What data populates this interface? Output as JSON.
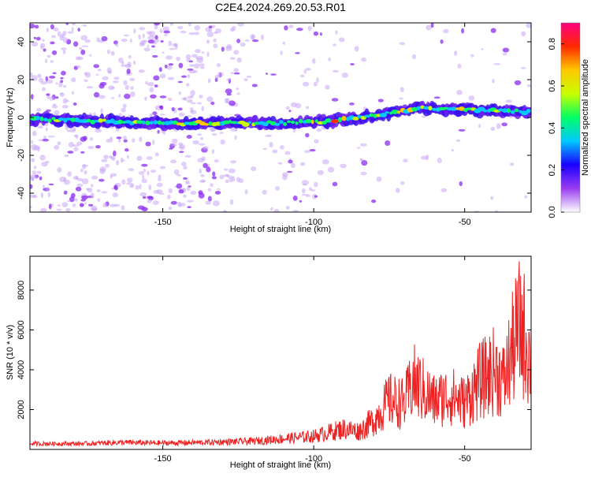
{
  "title": "C2E4.2024.269.20.53.R01",
  "spectrogram": {
    "xlabel": "Height of straight line (km)",
    "ylabel": "Frequency (Hz)",
    "xticks": [
      "-150",
      "-100",
      "-50"
    ],
    "yticks": [
      "40",
      "20",
      "0",
      "-20",
      "-40"
    ],
    "colorbar": {
      "label": "Normalized spectral amplitude",
      "ticks": [
        "0.8",
        "0.6",
        "0.4",
        "0.2",
        "0.0"
      ],
      "colors": [
        "#ffffff",
        "#9a3cf0",
        "#1a00ff",
        "#00c8ff",
        "#00ff66",
        "#c8ff00",
        "#ffc800",
        "#ff2a00",
        "#ff0080"
      ]
    }
  },
  "chart_data": [
    {
      "type": "heatmap",
      "xlabel": "Height of straight line (km)",
      "ylabel": "Frequency (Hz)",
      "xlim": [
        -194,
        -28
      ],
      "ylim": [
        -50,
        50
      ],
      "colorbar_range": [
        0,
        0.9
      ],
      "dominant_ridge": [
        {
          "x": -190,
          "y": -1
        },
        {
          "x": -170,
          "y": -2
        },
        {
          "x": -150,
          "y": -3
        },
        {
          "x": -130,
          "y": -3
        },
        {
          "x": -110,
          "y": -3
        },
        {
          "x": -95,
          "y": -2
        },
        {
          "x": -80,
          "y": 1
        },
        {
          "x": -65,
          "y": 5
        },
        {
          "x": -50,
          "y": 4
        },
        {
          "x": -30,
          "y": 3
        }
      ]
    },
    {
      "type": "line",
      "xlabel": "Height of straight line (km)",
      "ylabel": "SNR (10 * v/v)",
      "xlim": [
        -194,
        -28
      ],
      "ylim": [
        0,
        9700
      ],
      "yticks": [
        "8000",
        "6000",
        "4000",
        "2000"
      ],
      "xticks": [
        "-150",
        "-100",
        "-50"
      ],
      "series": [
        {
          "color": "#ee2222",
          "envelope": [
            {
              "x": -194,
              "y": 300
            },
            {
              "x": -175,
              "y": 300
            },
            {
              "x": -165,
              "y": 400
            },
            {
              "x": -150,
              "y": 350
            },
            {
              "x": -135,
              "y": 400
            },
            {
              "x": -120,
              "y": 500
            },
            {
              "x": -110,
              "y": 700
            },
            {
              "x": -100,
              "y": 900
            },
            {
              "x": -90,
              "y": 1500
            },
            {
              "x": -85,
              "y": 1300
            },
            {
              "x": -80,
              "y": 2200
            },
            {
              "x": -75,
              "y": 3800
            },
            {
              "x": -70,
              "y": 3500
            },
            {
              "x": -67,
              "y": 5300
            },
            {
              "x": -60,
              "y": 3700
            },
            {
              "x": -55,
              "y": 4200
            },
            {
              "x": -50,
              "y": 3600
            },
            {
              "x": -45,
              "y": 5300
            },
            {
              "x": -40,
              "y": 6200
            },
            {
              "x": -37,
              "y": 5300
            },
            {
              "x": -34,
              "y": 8000
            },
            {
              "x": -32,
              "y": 9600
            },
            {
              "x": -30,
              "y": 8900
            },
            {
              "x": -28,
              "y": 6700
            }
          ]
        }
      ]
    }
  ]
}
